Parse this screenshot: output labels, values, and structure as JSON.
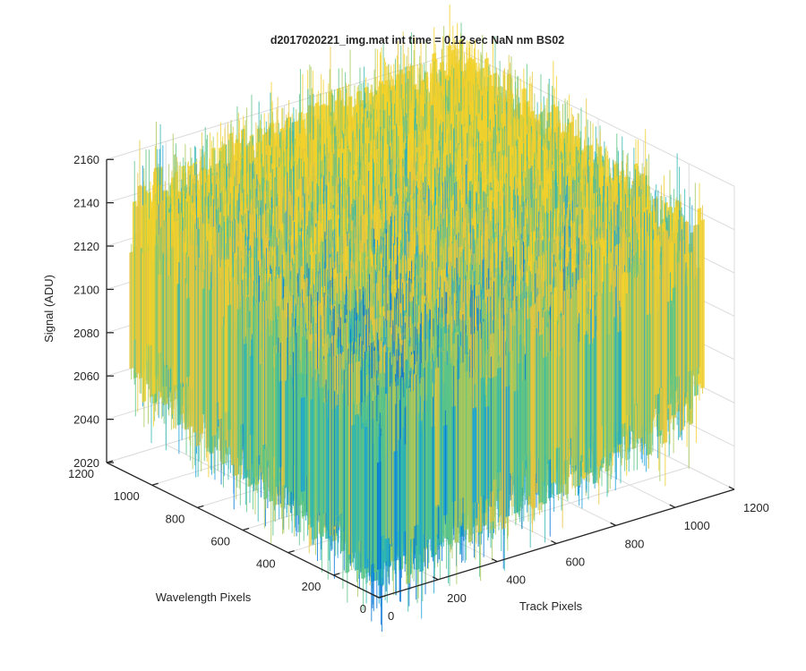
{
  "chart_data": {
    "type": "surface",
    "title": "d2017020221_img.mat int time = 0.12 sec  NaN nm BS02",
    "zlabel": "Signal (ADU)",
    "ylabel": "Wavelength Pixels",
    "xlabel": "Track Pixels",
    "x_axis": {
      "range": [
        0,
        1200
      ],
      "ticks": [
        "0",
        "200",
        "400",
        "600",
        "800",
        "1000",
        "1200"
      ]
    },
    "y_axis": {
      "range": [
        0,
        1200
      ],
      "ticks": [
        "0",
        "200",
        "400",
        "600",
        "800",
        "1000",
        "1200"
      ]
    },
    "z_axis": {
      "range": [
        2020,
        2160
      ],
      "ticks": [
        "2020",
        "2040",
        "2060",
        "2080",
        "2100",
        "2120",
        "2140",
        "2160"
      ]
    },
    "surface_extent": {
      "x": [
        0,
        1100
      ],
      "y": [
        0,
        1100
      ],
      "z_typical": [
        2040,
        2140
      ]
    },
    "grid": true,
    "colormap": [
      "#0072d6",
      "#1a9fd9",
      "#30b6b0",
      "#5cc487",
      "#a8c95a",
      "#e3c640",
      "#f2d12a"
    ]
  }
}
